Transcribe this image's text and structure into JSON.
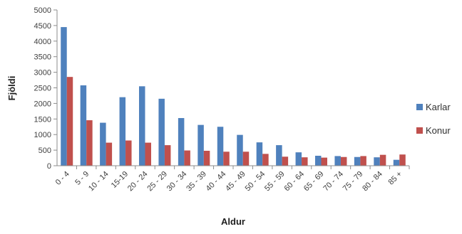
{
  "chart_data": {
    "type": "bar",
    "title": "",
    "xlabel": "Aldur",
    "ylabel": "Fjöldi",
    "ylim": [
      0,
      5000
    ],
    "yticks": [
      0,
      500,
      1000,
      1500,
      2000,
      2500,
      3000,
      3500,
      4000,
      4500,
      5000
    ],
    "grid": false,
    "legend_position": "right",
    "categories": [
      "0 - 4",
      "5 - 9",
      "10 - 14",
      "15-19",
      "20 - 24",
      "25 - 29",
      "30 - 34",
      "35 - 39",
      "40 - 44",
      "45 - 49",
      "50 - 54",
      "55 - 59",
      "60 - 64",
      "65 - 69",
      "70 - 74",
      "75 - 79",
      "80 - 84",
      "85 +"
    ],
    "series": [
      {
        "name": "Karlar",
        "color": "#4f81bd",
        "values": [
          4450,
          2580,
          1380,
          2200,
          2550,
          2150,
          1530,
          1310,
          1250,
          990,
          750,
          660,
          430,
          320,
          310,
          280,
          270,
          190
        ]
      },
      {
        "name": "Konur",
        "color": "#c0504d",
        "values": [
          2850,
          1460,
          740,
          810,
          740,
          660,
          490,
          480,
          450,
          450,
          380,
          290,
          270,
          260,
          280,
          310,
          350,
          360
        ]
      }
    ]
  }
}
